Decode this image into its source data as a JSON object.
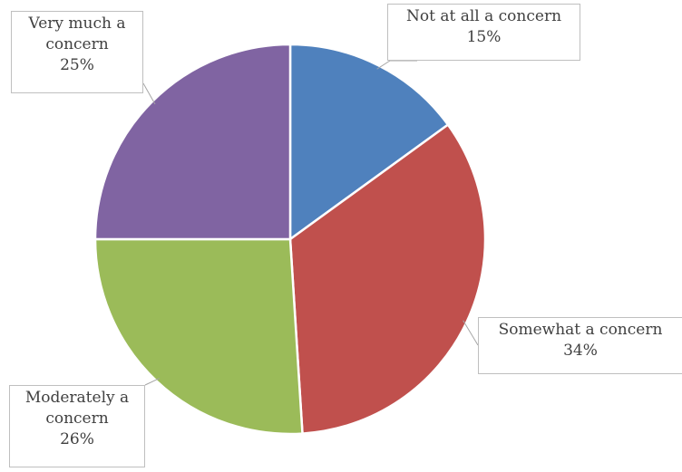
{
  "chart_data": {
    "type": "pie",
    "title": "",
    "slices": [
      {
        "label": "Not at all a concern",
        "value": 15,
        "value_label": "15%",
        "color": "#4F81BD"
      },
      {
        "label": "Somewhat a concern",
        "value": 34,
        "value_label": "34%",
        "color": "#C0504D"
      },
      {
        "label": "Moderately a concern",
        "value": 26,
        "value_label": "26%",
        "color": "#9BBB59"
      },
      {
        "label": "Very much a concern",
        "value": 25,
        "value_label": "25%",
        "color": "#8064A2"
      }
    ],
    "label_lines": {
      "slice-0": [
        "Not at all a concern",
        "15%"
      ],
      "slice-1": [
        "Somewhat a concern",
        "34%"
      ],
      "slice-2": [
        "Moderately a",
        "concern",
        "26%"
      ],
      "slice-3": [
        "Very much a",
        "concern",
        "25%"
      ]
    },
    "start_angle": "12 o'clock",
    "direction": "clockwise",
    "legend": "none",
    "data_labels": "callouts"
  }
}
